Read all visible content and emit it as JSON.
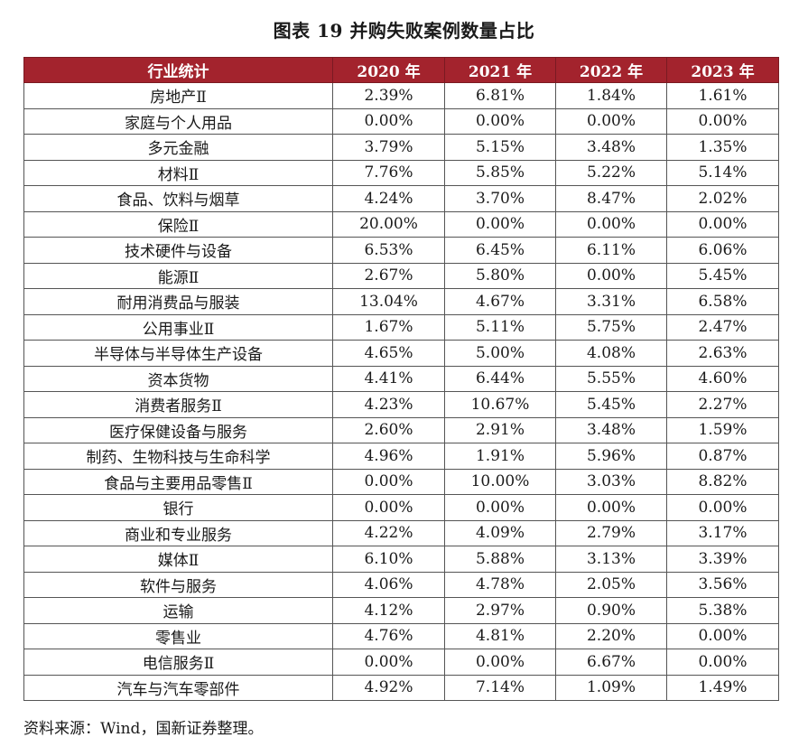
{
  "title": "图表 19 并购失败案例数量占比",
  "table": {
    "headers": [
      "行业统计",
      "2020 年",
      "2021 年",
      "2022 年",
      "2023 年"
    ],
    "rows": [
      [
        "房地产Ⅱ",
        "2.39%",
        "6.81%",
        "1.84%",
        "1.61%"
      ],
      [
        "家庭与个人用品",
        "0.00%",
        "0.00%",
        "0.00%",
        "0.00%"
      ],
      [
        "多元金融",
        "3.79%",
        "5.15%",
        "3.48%",
        "1.35%"
      ],
      [
        "材料Ⅱ",
        "7.76%",
        "5.85%",
        "5.22%",
        "5.14%"
      ],
      [
        "食品、饮料与烟草",
        "4.24%",
        "3.70%",
        "8.47%",
        "2.02%"
      ],
      [
        "保险Ⅱ",
        "20.00%",
        "0.00%",
        "0.00%",
        "0.00%"
      ],
      [
        "技术硬件与设备",
        "6.53%",
        "6.45%",
        "6.11%",
        "6.06%"
      ],
      [
        "能源Ⅱ",
        "2.67%",
        "5.80%",
        "0.00%",
        "5.45%"
      ],
      [
        "耐用消费品与服装",
        "13.04%",
        "4.67%",
        "3.31%",
        "6.58%"
      ],
      [
        "公用事业Ⅱ",
        "1.67%",
        "5.11%",
        "5.75%",
        "2.47%"
      ],
      [
        "半导体与半导体生产设备",
        "4.65%",
        "5.00%",
        "4.08%",
        "2.63%"
      ],
      [
        "资本货物",
        "4.41%",
        "6.44%",
        "5.55%",
        "4.60%"
      ],
      [
        "消费者服务Ⅱ",
        "4.23%",
        "10.67%",
        "5.45%",
        "2.27%"
      ],
      [
        "医疗保健设备与服务",
        "2.60%",
        "2.91%",
        "3.48%",
        "1.59%"
      ],
      [
        "制药、生物科技与生命科学",
        "4.96%",
        "1.91%",
        "5.96%",
        "0.87%"
      ],
      [
        "食品与主要用品零售Ⅱ",
        "0.00%",
        "10.00%",
        "3.03%",
        "8.82%"
      ],
      [
        "银行",
        "0.00%",
        "0.00%",
        "0.00%",
        "0.00%"
      ],
      [
        "商业和专业服务",
        "4.22%",
        "4.09%",
        "2.79%",
        "3.17%"
      ],
      [
        "媒体Ⅱ",
        "6.10%",
        "5.88%",
        "3.13%",
        "3.39%"
      ],
      [
        "软件与服务",
        "4.06%",
        "4.78%",
        "2.05%",
        "3.56%"
      ],
      [
        "运输",
        "4.12%",
        "2.97%",
        "0.90%",
        "5.38%"
      ],
      [
        "零售业",
        "4.76%",
        "4.81%",
        "2.20%",
        "0.00%"
      ],
      [
        "电信服务Ⅱ",
        "0.00%",
        "0.00%",
        "6.67%",
        "0.00%"
      ],
      [
        "汽车与汽车零部件",
        "4.92%",
        "7.14%",
        "1.09%",
        "1.49%"
      ]
    ]
  },
  "source": "资料来源：Wind，国新证券整理。",
  "colors": {
    "header_bg": "#a3232d",
    "header_text": "#ffffff",
    "border": "#555555"
  }
}
